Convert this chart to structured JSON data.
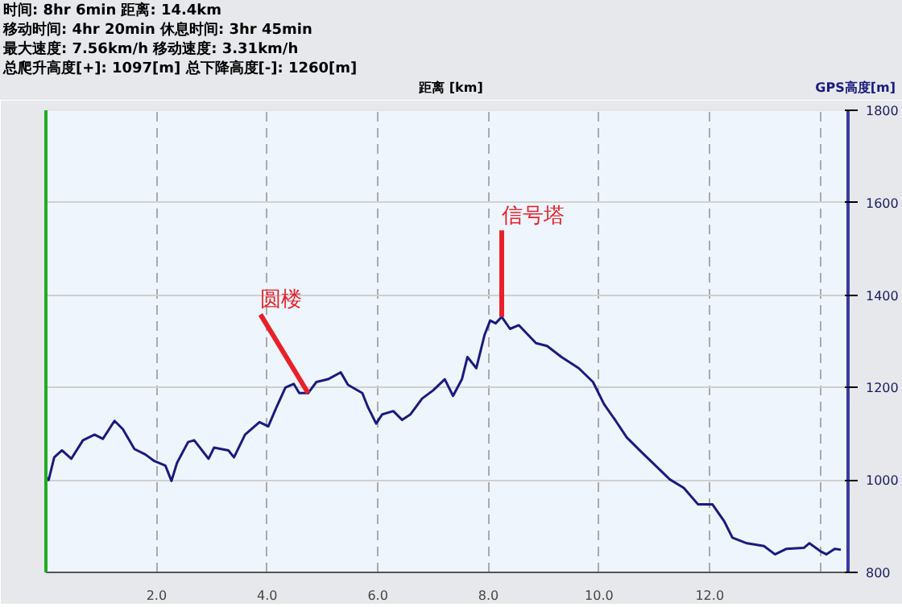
{
  "chart_data": {
    "type": "line",
    "xlabel": "距离 [km]",
    "ylabel": "GPS高度[m]",
    "annotations": [
      "时间: 8hr 6min  距离: 14.4km",
      "移动时间: 4hr 20min  休息时间: 3hr 45min",
      "最大速度: 7.56km/h  移动速度: 3.31km/h",
      "总爬升高度[+]: 1097[m]  总下降高度[-]: 1260[m]",
      {
        "text": "圆楼",
        "x": 4.74,
        "y": 1188
      },
      {
        "text": "信号塔",
        "x": 8.24,
        "y": 1353
      }
    ],
    "x": [
      0,
      0.05,
      0.15,
      0.29,
      0.46,
      0.67,
      0.88,
      1.03,
      1.24,
      1.39,
      1.6,
      1.8,
      1.96,
      2.16,
      2.27,
      2.37,
      2.57,
      2.68,
      2.94,
      3.04,
      3.3,
      3.4,
      3.6,
      3.86,
      4.02,
      4.17,
      4.33,
      4.48,
      4.58,
      4.74,
      4.89,
      5.1,
      5.33,
      5.46,
      5.72,
      5.82,
      5.97,
      6.08,
      6.28,
      6.44,
      6.59,
      6.8,
      7.0,
      7.21,
      7.36,
      7.52,
      7.62,
      7.78,
      7.93,
      8.03,
      8.13,
      8.24,
      8.39,
      8.55,
      8.86,
      9.06,
      9.32,
      9.63,
      9.89,
      10.09,
      10.3,
      10.5,
      10.76,
      11.02,
      11.28,
      11.53,
      11.79,
      12.05,
      12.26,
      12.41,
      12.67,
      12.98,
      13.18,
      13.39,
      13.7,
      13.8,
      14.01,
      14.11,
      14.26,
      14.37
    ],
    "series": [
      {
        "color": "#1a1a80",
        "values": [
          1007,
          1000,
          1049,
          1064,
          1046,
          1086,
          1098,
          1089,
          1128,
          1110,
          1067,
          1055,
          1041,
          1031,
          998,
          1037,
          1082,
          1086,
          1046,
          1070,
          1064,
          1049,
          1098,
          1125,
          1116,
          1158,
          1200,
          1208,
          1188,
          1188,
          1212,
          1218,
          1233,
          1206,
          1188,
          1158,
          1122,
          1142,
          1149,
          1130,
          1142,
          1176,
          1194,
          1218,
          1182,
          1218,
          1266,
          1242,
          1314,
          1345,
          1339,
          1353,
          1327,
          1335,
          1296,
          1290,
          1266,
          1242,
          1212,
          1164,
          1128,
          1092,
          1061,
          1031,
          1001,
          983,
          947,
          947,
          911,
          875,
          863,
          857,
          839,
          851,
          853,
          863,
          845,
          839,
          851,
          849
        ]
      }
    ],
    "xlim": [
      0,
      14.5
    ],
    "ylim": [
      800,
      1800
    ],
    "xticks": [
      {
        "value": 2,
        "label": "2.0"
      },
      {
        "value": 4,
        "label": "4.0"
      },
      {
        "value": 6,
        "label": "6.0"
      },
      {
        "value": 8,
        "label": "8.0"
      },
      {
        "value": 10,
        "label": "10.0"
      },
      {
        "value": 12,
        "label": "12.0"
      },
      {
        "value": 14,
        "label": null
      }
    ],
    "yticks": [
      800,
      1000,
      1200,
      1400,
      1600,
      1800
    ],
    "grid": true
  }
}
